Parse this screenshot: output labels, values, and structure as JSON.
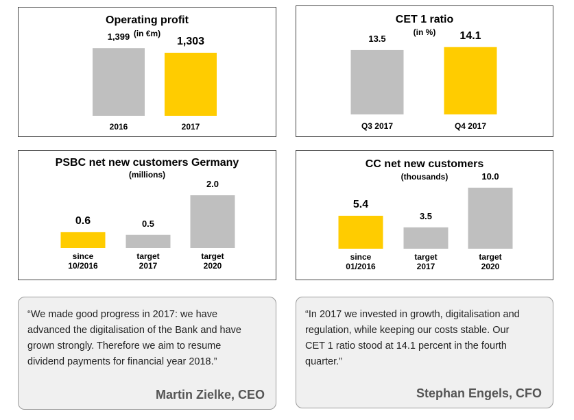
{
  "colors": {
    "highlight": "#FFCC00",
    "neutral": "#BFBFBF"
  },
  "chart_data": [
    {
      "type": "bar",
      "title": "Operating profit",
      "subtitle": "(in €m)",
      "categories": [
        "2016",
        "2017"
      ],
      "values": [
        1399,
        1303
      ],
      "value_labels": [
        "1,399",
        "1,303"
      ],
      "highlight": [
        false,
        true
      ],
      "ylim": [
        0,
        1600
      ]
    },
    {
      "type": "bar",
      "title": "CET 1 ratio",
      "subtitle": "(in %)",
      "categories": [
        "Q3 2017",
        "Q4 2017"
      ],
      "values": [
        13.5,
        14.1
      ],
      "value_labels": [
        "13.5",
        "14.1"
      ],
      "highlight": [
        false,
        true
      ],
      "ylim": [
        0,
        15.5
      ]
    },
    {
      "type": "bar",
      "title": "PSBC net new customers Germany",
      "subtitle": "(millions)",
      "categories": [
        "since 10/2016",
        "target 2017",
        "target 2020"
      ],
      "values": [
        0.6,
        0.5,
        2.0
      ],
      "value_labels": [
        "0.6",
        "0.5",
        "2.0"
      ],
      "highlight": [
        true,
        false,
        false
      ],
      "ylim": [
        0,
        2.0
      ]
    },
    {
      "type": "bar",
      "title": "CC net new customers",
      "subtitle": "(thousands)",
      "categories": [
        "since 01/2016",
        "target 2017",
        "target 2020"
      ],
      "values": [
        5.4,
        3.5,
        10.0
      ],
      "value_labels": [
        "5.4",
        "3.5",
        "10.0"
      ],
      "highlight": [
        true,
        false,
        false
      ],
      "ylim": [
        0,
        11.0
      ]
    }
  ],
  "quotes": [
    {
      "lines": [
        "“We made good progress in 2017: we have",
        "advanced the digitalisation of the Bank and have",
        "grown strongly. Therefore we aim to resume",
        "dividend payments for financial year 2018.”"
      ],
      "author": "Martin Zielke, CEO"
    },
    {
      "lines": [
        "“In 2017 we invested in growth, digitalisation and",
        "regulation, while keeping our costs stable. Our",
        "CET 1 ratio stood at 14.1 percent in the fourth",
        "quarter.”"
      ],
      "author": "Stephan Engels, CFO"
    }
  ]
}
